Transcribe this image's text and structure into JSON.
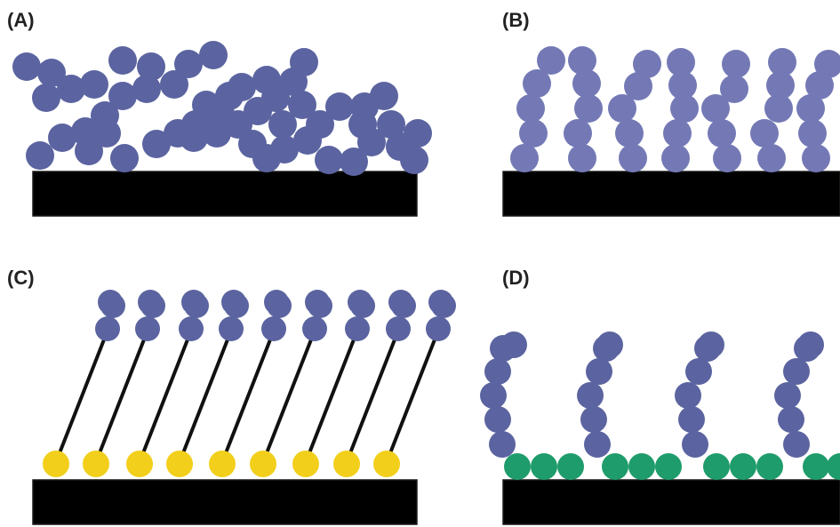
{
  "figure": {
    "panels": [
      {
        "id": "A",
        "label": "(A)",
        "description_key": "random-adsorbed-chains"
      },
      {
        "id": "B",
        "label": "(B)",
        "description_key": "grafted-brush-chains"
      },
      {
        "id": "C",
        "label": "(C)",
        "description_key": "tethered-chains-on-anchors"
      },
      {
        "id": "D",
        "label": "(D)",
        "description_key": "chains-grafted-on-green-layer"
      }
    ]
  },
  "colors": {
    "substrate": "#e8391f",
    "bead": "#5b64a0",
    "bead_light": "#7479b6",
    "anchor_yellow": "#f2cf1b",
    "anchor_green": "#1f9c6b",
    "tether": "#111111",
    "label": "#222222"
  }
}
